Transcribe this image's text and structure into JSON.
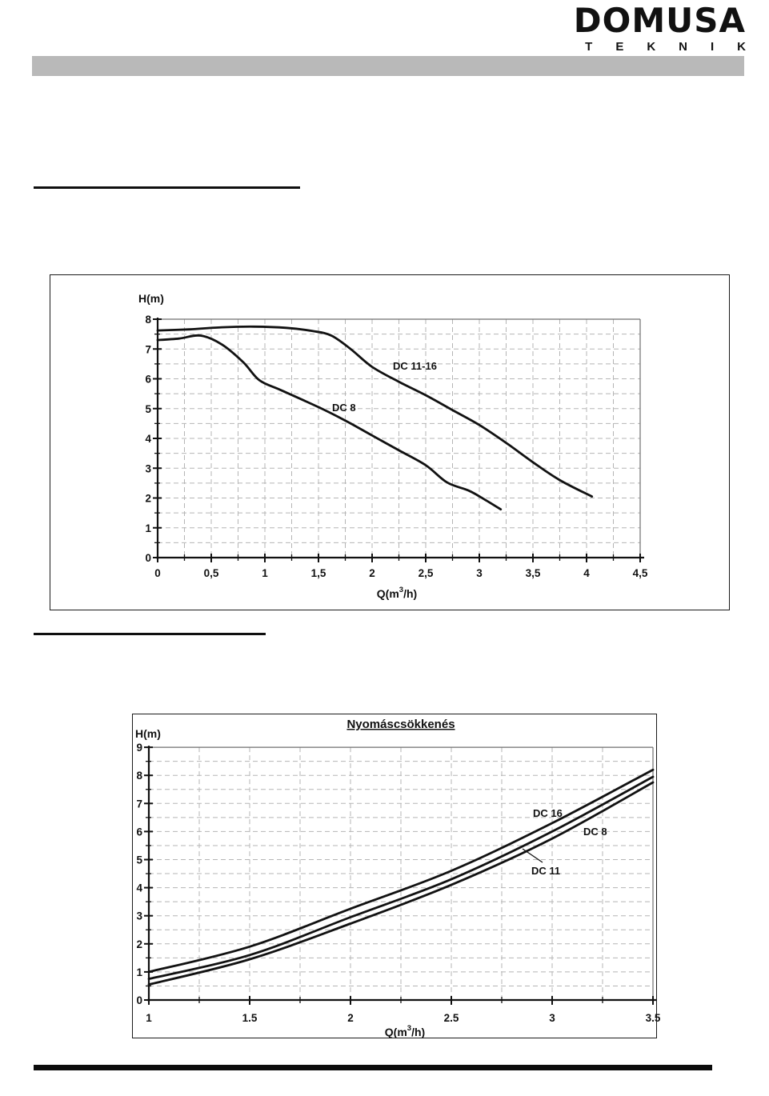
{
  "logo": {
    "line1": "DOMUSA",
    "line2": "TEKNIK"
  },
  "colors": {
    "header_bar": "#b9b9b9",
    "text": "#111111",
    "curve": "#111111",
    "grid": "#b5b5b5"
  },
  "chart_data": [
    {
      "type": "line",
      "title": "",
      "ylabel": "H(m)",
      "xlabel": "Q(m³/h)",
      "xlim": [
        0,
        4.5
      ],
      "ylim": [
        0,
        8
      ],
      "x_ticks": [
        "0",
        "0,5",
        "1",
        "1,5",
        "2",
        "2,5",
        "3",
        "3,5",
        "4",
        "4,5"
      ],
      "y_ticks": [
        "0",
        "1",
        "2",
        "3",
        "4",
        "5",
        "6",
        "7",
        "8"
      ],
      "grid": "dashed, vertical every 0.25, horizontal every 0.5",
      "legend_position": "inline-labels",
      "series": [
        {
          "name": "DC 11-16",
          "points": [
            [
              0,
              7.62
            ],
            [
              0.3,
              7.66
            ],
            [
              0.6,
              7.73
            ],
            [
              0.9,
              7.75
            ],
            [
              1.2,
              7.71
            ],
            [
              1.45,
              7.6
            ],
            [
              1.62,
              7.45
            ],
            [
              1.8,
              7.0
            ],
            [
              2.0,
              6.4
            ],
            [
              2.25,
              5.9
            ],
            [
              2.5,
              5.45
            ],
            [
              2.75,
              4.95
            ],
            [
              3.0,
              4.45
            ],
            [
              3.25,
              3.85
            ],
            [
              3.5,
              3.2
            ],
            [
              3.75,
              2.6
            ],
            [
              4.05,
              2.05
            ]
          ]
        },
        {
          "name": "DC 8",
          "points": [
            [
              0,
              7.3
            ],
            [
              0.2,
              7.35
            ],
            [
              0.4,
              7.45
            ],
            [
              0.6,
              7.15
            ],
            [
              0.8,
              6.55
            ],
            [
              0.95,
              5.95
            ],
            [
              1.15,
              5.62
            ],
            [
              1.5,
              5.05
            ],
            [
              1.75,
              4.6
            ],
            [
              2.0,
              4.1
            ],
            [
              2.25,
              3.6
            ],
            [
              2.5,
              3.1
            ],
            [
              2.7,
              2.52
            ],
            [
              2.9,
              2.25
            ],
            [
              3.05,
              1.95
            ],
            [
              3.2,
              1.62
            ]
          ]
        }
      ]
    },
    {
      "type": "line",
      "title": "Nyomáscsökkenés",
      "ylabel": "H(m)",
      "xlabel": "Q(m³/h)",
      "xlim": [
        1,
        3.5
      ],
      "ylim": [
        0,
        9
      ],
      "x_ticks": [
        "1",
        "1.5",
        "2",
        "2.5",
        "3",
        "3.5"
      ],
      "y_ticks": [
        "0",
        "1",
        "2",
        "3",
        "4",
        "5",
        "6",
        "7",
        "8",
        "9"
      ],
      "grid": "dashed, vertical every 0.25, horizontal every 0.5",
      "legend_position": "inline-labels",
      "series": [
        {
          "name": "DC 16",
          "points": [
            [
              1,
              1.0
            ],
            [
              1.5,
              1.9
            ],
            [
              2,
              3.25
            ],
            [
              2.5,
              4.6
            ],
            [
              3,
              6.3
            ],
            [
              3.5,
              8.2
            ]
          ]
        },
        {
          "name": "DC 8",
          "points": [
            [
              1,
              0.75
            ],
            [
              1.5,
              1.6
            ],
            [
              2,
              2.95
            ],
            [
              2.5,
              4.3
            ],
            [
              3,
              6.0
            ],
            [
              3.5,
              7.95
            ]
          ]
        },
        {
          "name": "DC 11",
          "points": [
            [
              1,
              0.55
            ],
            [
              1.5,
              1.45
            ],
            [
              2,
              2.72
            ],
            [
              2.5,
              4.1
            ],
            [
              3,
              5.75
            ],
            [
              3.5,
              7.75
            ]
          ]
        }
      ]
    }
  ]
}
